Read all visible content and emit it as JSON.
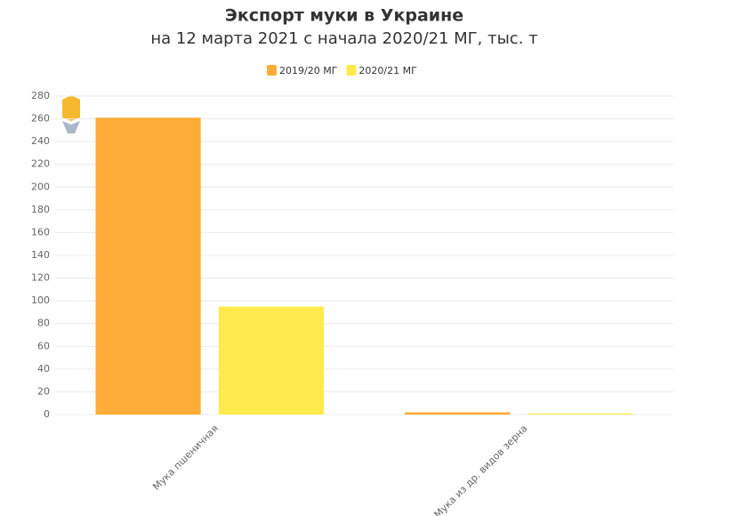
{
  "chart_data": {
    "type": "bar",
    "title": "Экспорт муки в Украине",
    "subtitle": "на 12 марта 2021 с начала 2020/21 МГ, тыс. т",
    "categories": [
      "Мука пшеничная",
      "Мука из др. видов зерна"
    ],
    "series": [
      {
        "name": "2019/20 МГ",
        "color": "#ffac38",
        "values": [
          261,
          2
        ]
      },
      {
        "name": "2020/21 МГ",
        "color": "#ffeb4b",
        "values": [
          95,
          1
        ]
      }
    ],
    "ylim": [
      0,
      280
    ],
    "yticks": [
      0,
      20,
      40,
      60,
      80,
      100,
      120,
      140,
      160,
      180,
      200,
      220,
      240,
      260,
      280
    ],
    "grid": true
  }
}
